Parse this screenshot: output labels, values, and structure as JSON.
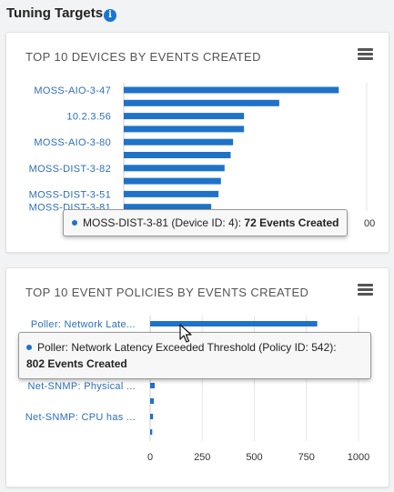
{
  "page": {
    "title": "Tuning Targets",
    "info_icon": "info-icon"
  },
  "colors": {
    "bar": "#1f72c8",
    "label": "#2d6fb7",
    "grid": "#e6e6e6",
    "accent": "#1976d2"
  },
  "card1": {
    "title": "TOP 10 DEVICES BY EVENTS CREATED",
    "menu_icon": "hamburger-menu-icon",
    "tooltip": {
      "name": "MOSS-DIST-3-81",
      "detail": "(Device ID: 4):",
      "value_text": "72 Events Created"
    }
  },
  "card2": {
    "title": "TOP 10 EVENT POLICIES BY EVENTS CREATED",
    "menu_icon": "hamburger-menu-icon",
    "tooltip": {
      "name": "Poller: Network Latency Exceeded Threshold",
      "detail": "(Policy ID: 542):",
      "value_text": "802 Events Created"
    }
  },
  "chart_data": [
    {
      "type": "bar",
      "orientation": "horizontal",
      "title": "TOP 10 DEVICES BY EVENTS CREATED",
      "categories": [
        "MOSS-AIO-3-47",
        "",
        "10.2.3.56",
        "",
        "MOSS-AIO-3-80",
        "",
        "MOSS-DIST-3-82",
        "",
        "MOSS-DIST-3-51",
        "MOSS-DIST-3-81"
      ],
      "values": [
        177,
        128,
        99,
        99,
        90,
        88,
        83,
        80,
        78,
        72
      ],
      "xlim": [
        0,
        200
      ],
      "xtick_labels": [
        "00"
      ],
      "grid": true
    },
    {
      "type": "bar",
      "orientation": "horizontal",
      "title": "TOP 10 EVENT POLICIES BY EVENTS CREATED",
      "categories": [
        "Poller: Network Late...",
        "",
        "",
        "",
        "Net-SNMP: Physical ...",
        "",
        "Net-SNMP: CPU has ...",
        ""
      ],
      "values": [
        802,
        0,
        0,
        0,
        22,
        18,
        14,
        10
      ],
      "xlim": [
        0,
        1000
      ],
      "xticks": [
        0,
        250,
        500,
        750,
        1000
      ],
      "xtick_labels": [
        "0",
        "250",
        "500",
        "750",
        "1000"
      ],
      "grid": true
    }
  ]
}
